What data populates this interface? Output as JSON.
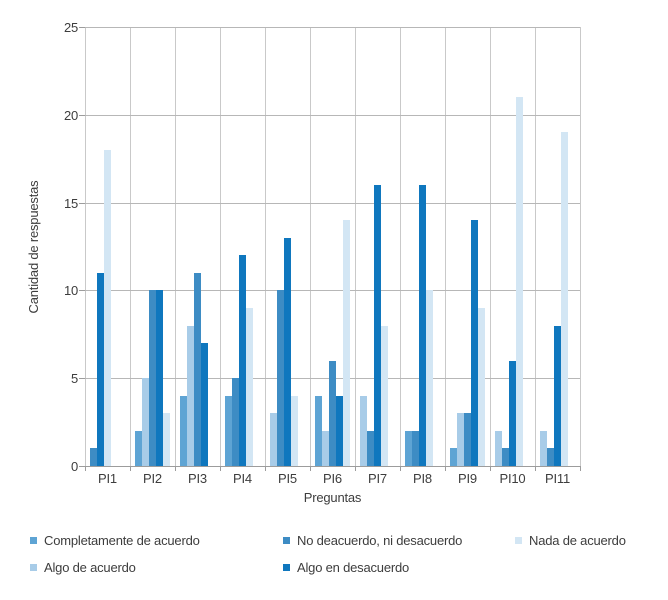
{
  "chart_data": {
    "type": "bar",
    "title": "",
    "xlabel": "Preguntas",
    "ylabel": "Cantidad de respuestas",
    "ylim": [
      0,
      25
    ],
    "ytick_step": 5,
    "yticks": [
      "0",
      "5",
      "10",
      "15",
      "20",
      "25"
    ],
    "grid": true,
    "legend_position": "bottom",
    "categories": [
      "PI1",
      "PI2",
      "PI3",
      "PI4",
      "PI5",
      "PI6",
      "PI7",
      "PI8",
      "PI9",
      "PI10",
      "PI11"
    ],
    "series": [
      {
        "name": "Completamente de acuerdo",
        "color": "#5EA4D4",
        "values": [
          0,
          2,
          4,
          4,
          0,
          4,
          0,
          2,
          1,
          0,
          0
        ]
      },
      {
        "name": "Algo de acuerdo",
        "color": "#A8CCE8",
        "values": [
          0,
          5,
          8,
          0,
          3,
          2,
          4,
          0,
          3,
          2,
          2
        ]
      },
      {
        "name": "No deacuerdo, ni desacuerdo",
        "color": "#3D8CC4",
        "values": [
          1,
          10,
          11,
          5,
          10,
          6,
          2,
          2,
          3,
          1,
          1
        ]
      },
      {
        "name": "Algo en desacuerdo",
        "color": "#0F77BE",
        "values": [
          11,
          10,
          7,
          12,
          13,
          4,
          16,
          16,
          14,
          6,
          8
        ]
      },
      {
        "name": "Nada de acuerdo",
        "color": "#D3E6F4",
        "values": [
          18,
          3,
          0,
          9,
          4,
          14,
          8,
          10,
          9,
          21,
          19
        ]
      }
    ]
  }
}
